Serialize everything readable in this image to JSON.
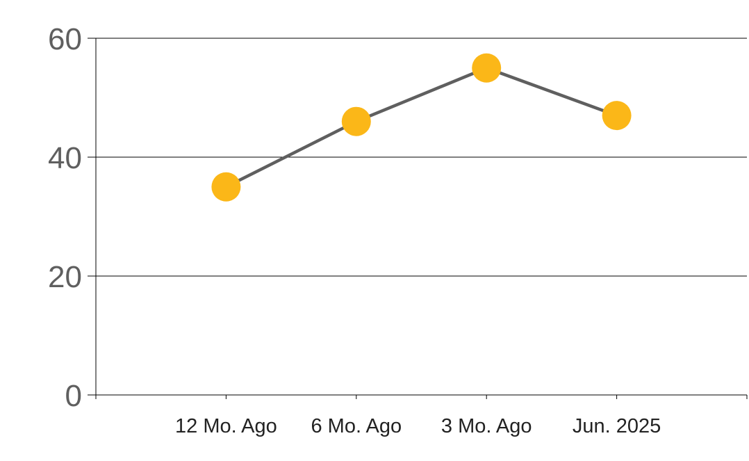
{
  "chart_data": {
    "type": "line",
    "title": "",
    "xlabel": "",
    "ylabel": "",
    "categories": [
      "12 Mo. Ago",
      "6 Mo. Ago",
      "3 Mo. Ago",
      "Jun. 2025"
    ],
    "series": [
      {
        "values": [
          35,
          46,
          55,
          47
        ]
      }
    ],
    "ylim": [
      0,
      60
    ],
    "yticks": [
      0,
      20,
      40,
      60
    ],
    "grid": "horizontal",
    "legend": "none",
    "colors": {
      "line": "#5f5f5f",
      "marker": "#fbb718",
      "grid": "#000000",
      "axis_text": "#5f5f5f"
    }
  }
}
